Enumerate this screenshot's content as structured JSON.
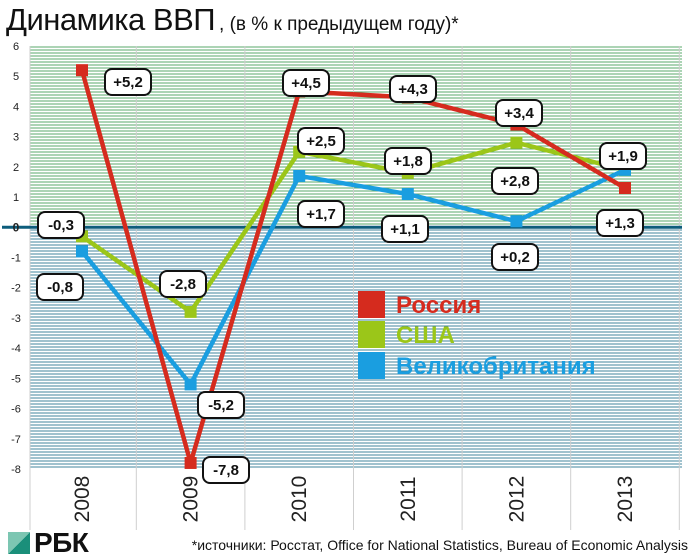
{
  "title": {
    "main": "Динамика ВВП",
    "sub": ", (в % к предыдущем году)*"
  },
  "source": "*источники: Росстат, Office for National Statistics, Bureau of Economic Analysis",
  "logo": "РБК",
  "colors": {
    "Россия": "#d52b1e",
    "США": "#9bc619",
    "Великобритания": "#1a9ee0",
    "grid_positive": "#3e9a52",
    "grid_negative": "#1f6f8e",
    "zero_line": "#0d5d7c"
  },
  "chart_data": {
    "type": "line",
    "title": "Динамика ВВП",
    "subtitle": "(в % к предыдущем году)*",
    "x": [
      "2008",
      "2009",
      "2010",
      "2011",
      "2012",
      "2013"
    ],
    "ylim": [
      -8,
      6
    ],
    "yticks": [
      "6",
      "5",
      "4",
      "3",
      "2",
      "1",
      "0",
      "-1",
      "-2",
      "-3",
      "-4",
      "-5",
      "-6",
      "-7",
      "-8"
    ],
    "grid": true,
    "legend": "center-right",
    "series": [
      {
        "name": "Россия",
        "values": [
          5.2,
          -7.8,
          4.5,
          4.3,
          3.4,
          1.3
        ],
        "labels": [
          "+5,2",
          "-7,8",
          "+4,5",
          "+4,3",
          "+3,4",
          "+1,3"
        ]
      },
      {
        "name": "США",
        "values": [
          -0.3,
          -2.8,
          2.5,
          1.8,
          2.8,
          1.9
        ],
        "labels": [
          "-0,3",
          "-2,8",
          "+2,5",
          "+1,8",
          "+2,8",
          "+1,9"
        ]
      },
      {
        "name": "Великобритания",
        "values": [
          -0.8,
          -5.2,
          1.7,
          1.1,
          0.2,
          1.9
        ],
        "labels": [
          "-0,8",
          "-5,2",
          "+1,7",
          "+1,1",
          "+0,2",
          ""
        ]
      }
    ]
  }
}
